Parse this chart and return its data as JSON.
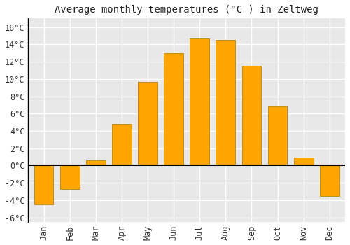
{
  "months": [
    "Jan",
    "Feb",
    "Mar",
    "Apr",
    "May",
    "Jun",
    "Jul",
    "Aug",
    "Sep",
    "Oct",
    "Nov",
    "Dec"
  ],
  "values": [
    -4.5,
    -2.7,
    0.6,
    4.8,
    9.7,
    13.0,
    14.7,
    14.5,
    11.5,
    6.8,
    0.9,
    -3.5
  ],
  "bar_color": "#FFA500",
  "bar_edge_color": "#B8860B",
  "title": "Average monthly temperatures (°C ) in Zeltweg",
  "ylim": [
    -6.5,
    17
  ],
  "yticks": [
    -6,
    -4,
    -2,
    0,
    2,
    4,
    6,
    8,
    10,
    12,
    14,
    16
  ],
  "ytick_labels": [
    "-6°C",
    "-4°C",
    "-2°C",
    "0°C",
    "2°C",
    "4°C",
    "6°C",
    "8°C",
    "10°C",
    "12°C",
    "14°C",
    "16°C"
  ],
  "plot_bg_color": "#e8e8e8",
  "fig_bg_color": "#ffffff",
  "grid_color": "#ffffff",
  "title_fontsize": 10,
  "tick_fontsize": 8.5,
  "bar_width": 0.75
}
